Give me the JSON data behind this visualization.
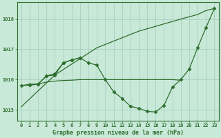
{
  "title": "Graphe pression niveau de la mer (hPa)",
  "x_ticks": [
    0,
    1,
    2,
    3,
    4,
    5,
    6,
    7,
    8,
    9,
    10,
    11,
    12,
    13,
    14,
    15,
    16,
    17,
    18,
    19,
    20,
    21,
    22,
    23
  ],
  "ylim": [
    1014.65,
    1018.55
  ],
  "yticks": [
    1015,
    1016,
    1017,
    1018
  ],
  "bg_color": "#c8e8d8",
  "grid_color": "#a0ccbc",
  "line_color": "#2d6e2d",
  "figsize": [
    3.2,
    2.0
  ],
  "dpi": 100,
  "marker": "D",
  "marker_size": 2.5,
  "line_width": 0.9,
  "line1_x": [
    0,
    4,
    9,
    14,
    19,
    21,
    22,
    23
  ],
  "line1_y": [
    1015.1,
    1016.15,
    1017.05,
    1017.6,
    1018.0,
    1018.15,
    1018.28,
    1018.35
  ],
  "line2_x": [
    0,
    1,
    2,
    3,
    4,
    5,
    6,
    7,
    8,
    9,
    10,
    11,
    12,
    13,
    14,
    15,
    16,
    17,
    18,
    19,
    20,
    21,
    22,
    23
  ],
  "line2_y": [
    1015.8,
    1015.82,
    1015.85,
    1016.12,
    1016.15,
    1016.55,
    1016.65,
    1016.72,
    1016.55,
    1016.48,
    1016.0,
    1015.6,
    1015.38,
    1015.12,
    1015.05,
    1014.95,
    1014.93,
    1015.15,
    1015.75,
    1016.0,
    1016.35,
    1017.05,
    1017.72,
    1018.35
  ],
  "line3_x": [
    0,
    1,
    2,
    3,
    4,
    5,
    6,
    7,
    8,
    9,
    10,
    11,
    12,
    13,
    14,
    15,
    16,
    17,
    18,
    19
  ],
  "line3_y": [
    1015.8,
    1015.85,
    1015.85,
    1015.92,
    1015.95,
    1015.97,
    1015.98,
    1016.0,
    1016.0,
    1016.0,
    1016.0,
    1016.0,
    1016.0,
    1016.0,
    1016.0,
    1016.0,
    1016.0,
    1016.0,
    1016.0,
    1015.98
  ],
  "line4_x": [
    1,
    2,
    3,
    4,
    5,
    6,
    7
  ],
  "line4_y": [
    1015.82,
    1015.85,
    1016.12,
    1016.2,
    1016.55,
    1016.65,
    1016.72
  ]
}
